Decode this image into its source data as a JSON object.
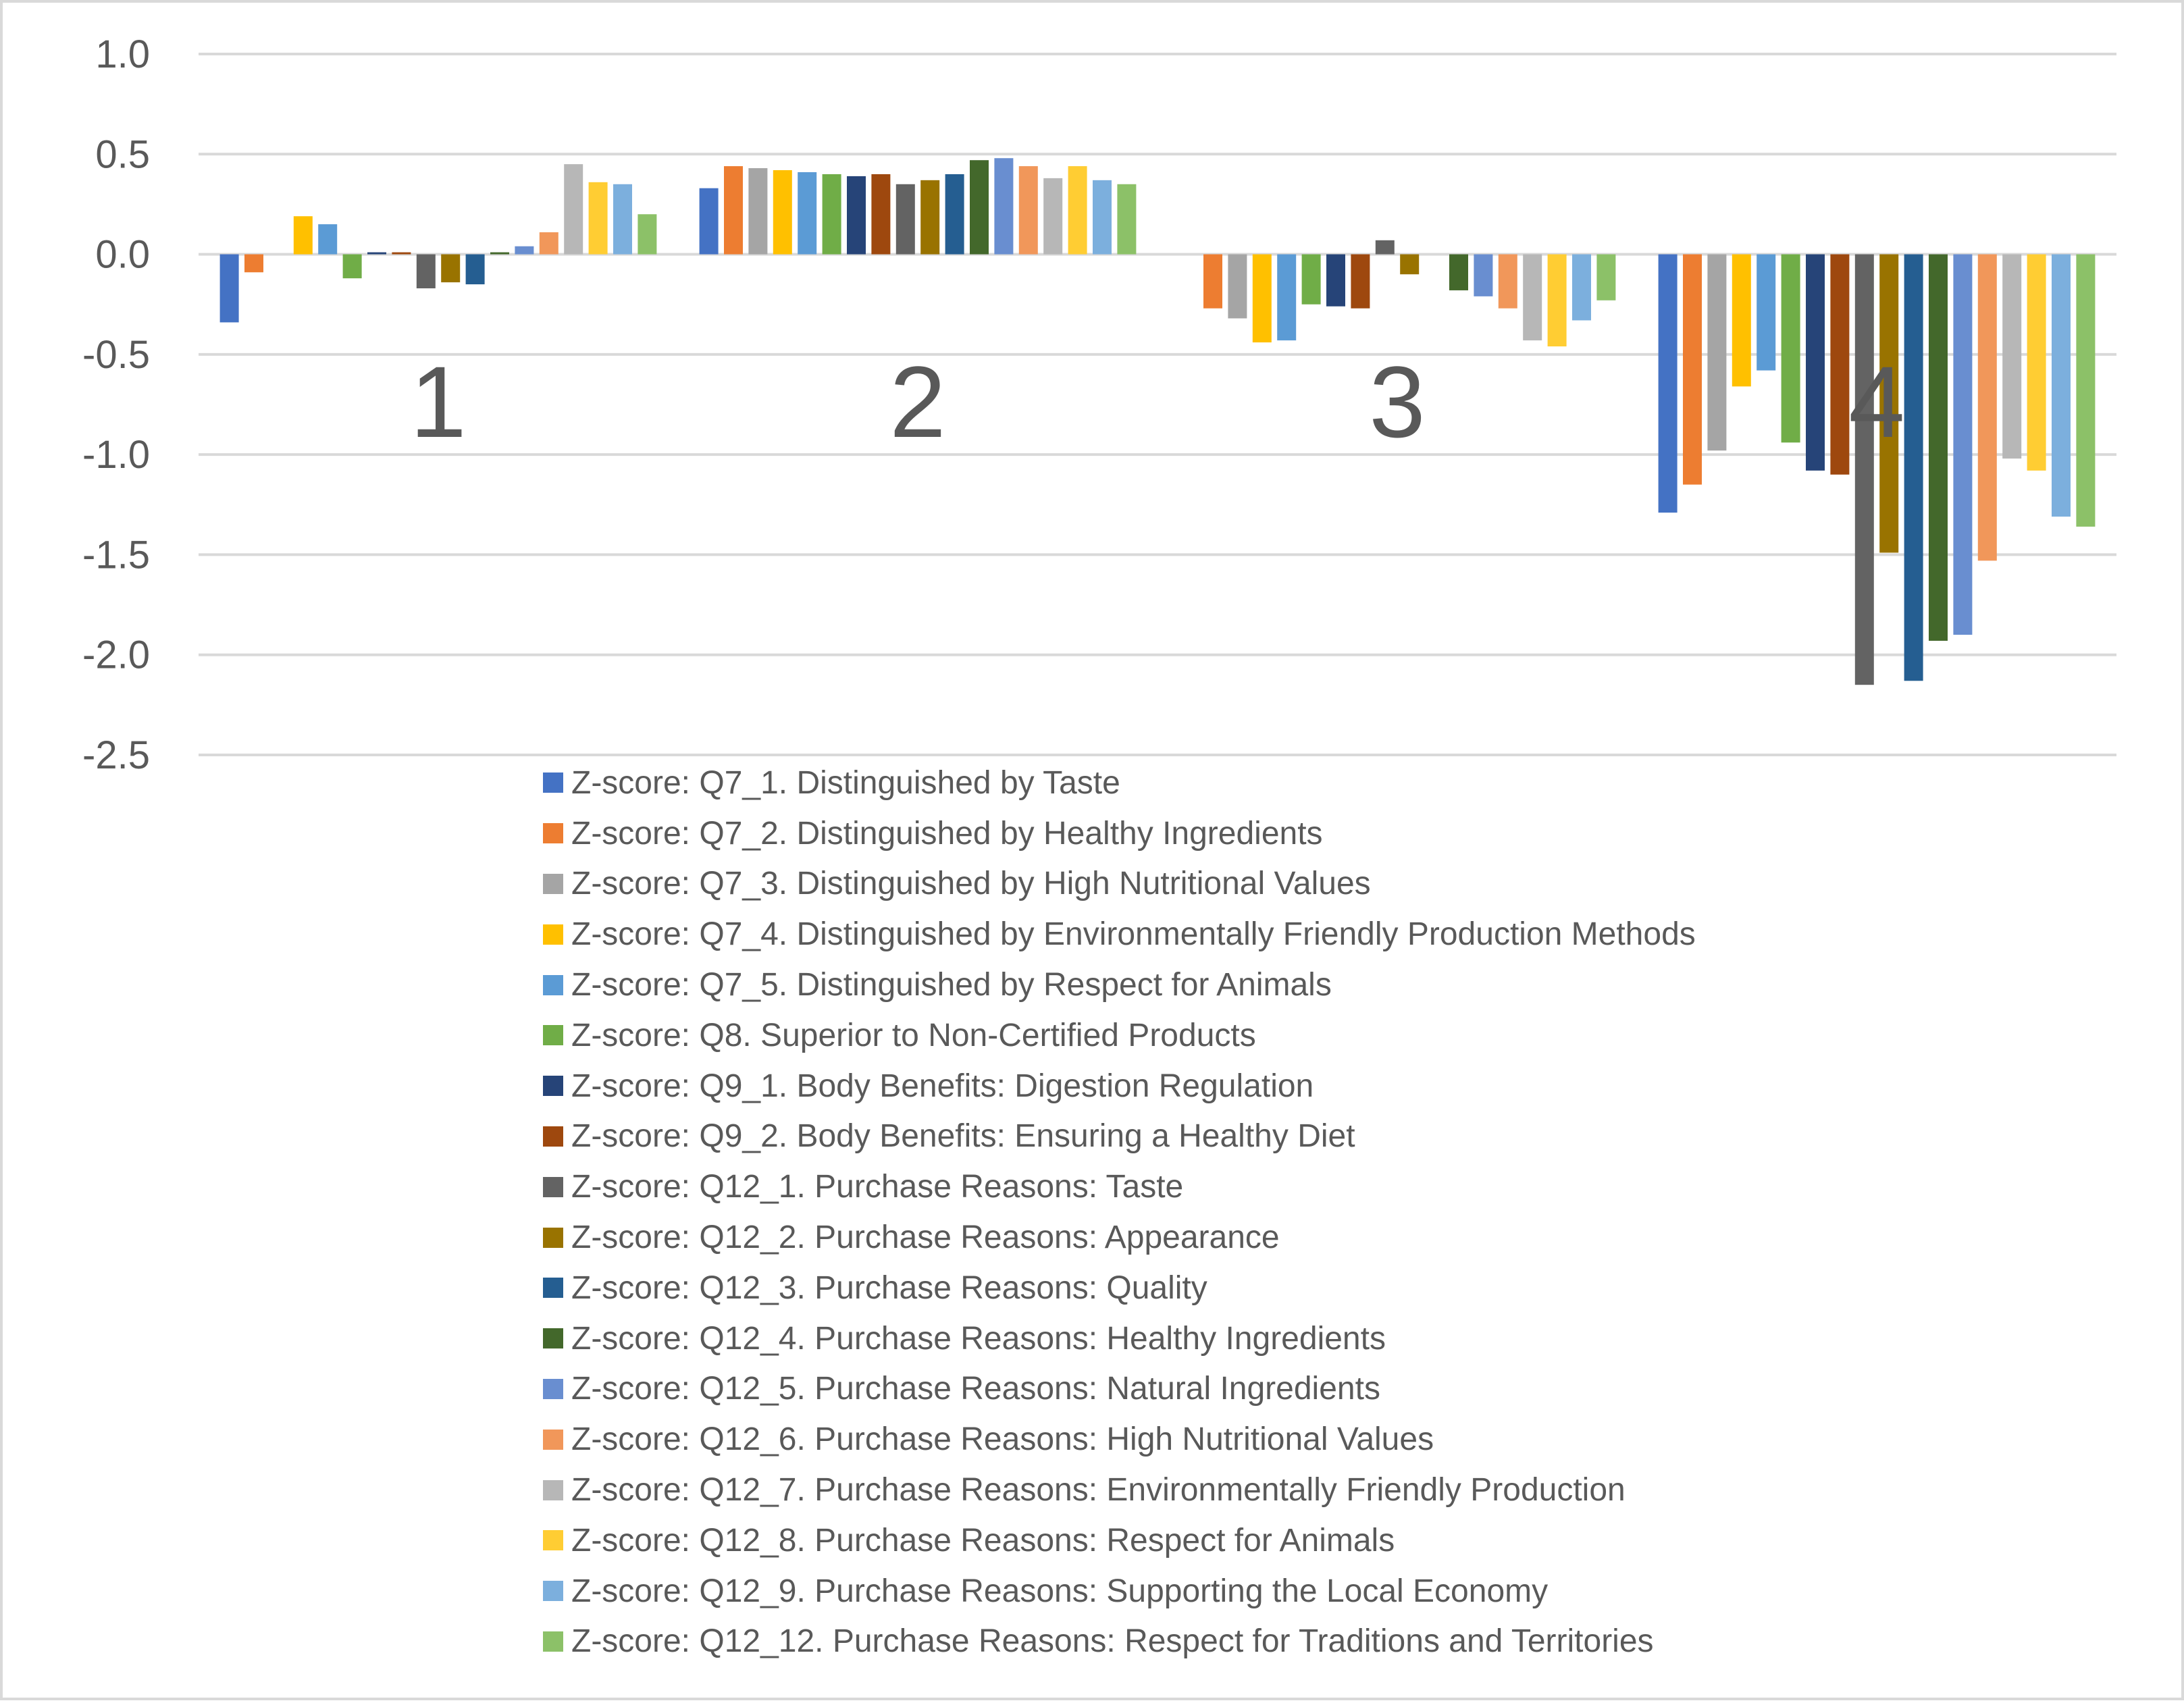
{
  "chart_data": {
    "type": "bar",
    "title": "",
    "xlabel": "",
    "ylabel": "",
    "ylim": [
      -2.5,
      1.0
    ],
    "yticks": [
      1.0,
      0.5,
      0.0,
      -0.5,
      -1.0,
      -1.5,
      -2.0,
      -2.5
    ],
    "ytick_labels": [
      "1.0",
      "0.5",
      "0.0",
      "-0.5",
      "-1.0",
      "-1.5",
      "-2.0",
      "-2.5"
    ],
    "grid": true,
    "legend_position": "bottom",
    "categories": [
      "1",
      "2",
      "3",
      "4"
    ],
    "series": [
      {
        "name": "Z-score: Q7_1. Distinguished by Taste",
        "color": "#4472C4",
        "values": [
          -0.34,
          0.33,
          0.0,
          -1.29
        ]
      },
      {
        "name": "Z-score: Q7_2. Distinguished by Healthy Ingredients",
        "color": "#ED7D31",
        "values": [
          -0.09,
          0.44,
          -0.27,
          -1.15
        ]
      },
      {
        "name": "Z-score: Q7_3. Distinguished by High Nutritional Values",
        "color": "#A5A5A5",
        "values": [
          0.0,
          0.43,
          -0.32,
          -0.98
        ]
      },
      {
        "name": "Z-score: Q7_4. Distinguished by Environmentally Friendly Production Methods",
        "color": "#FFC000",
        "values": [
          0.19,
          0.42,
          -0.44,
          -0.66
        ]
      },
      {
        "name": "Z-score: Q7_5. Distinguished by Respect for Animals",
        "color": "#5B9BD5",
        "values": [
          0.15,
          0.41,
          -0.43,
          -0.58
        ]
      },
      {
        "name": "Z-score: Q8. Superior to Non-Certified Products",
        "color": "#70AD47",
        "values": [
          -0.12,
          0.4,
          -0.25,
          -0.94
        ]
      },
      {
        "name": "Z-score: Q9_1. Body Benefits: Digestion Regulation",
        "color": "#264478",
        "values": [
          0.01,
          0.39,
          -0.26,
          -1.08
        ]
      },
      {
        "name": "Z-score: Q9_2. Body Benefits: Ensuring a Healthy Diet",
        "color": "#9E480E",
        "values": [
          0.01,
          0.4,
          -0.27,
          -1.1
        ]
      },
      {
        "name": "Z-score: Q12_1. Purchase Reasons: Taste",
        "color": "#636363",
        "values": [
          -0.17,
          0.35,
          0.07,
          -2.15
        ]
      },
      {
        "name": "Z-score: Q12_2. Purchase Reasons: Appearance",
        "color": "#997300",
        "values": [
          -0.14,
          0.37,
          -0.1,
          -1.49
        ]
      },
      {
        "name": "Z-score: Q12_3. Purchase Reasons: Quality",
        "color": "#255E91",
        "values": [
          -0.15,
          0.4,
          0.0,
          -2.13
        ]
      },
      {
        "name": "Z-score: Q12_4. Purchase Reasons: Healthy Ingredients",
        "color": "#43682B",
        "values": [
          0.01,
          0.47,
          -0.18,
          -1.93
        ]
      },
      {
        "name": "Z-score: Q12_5. Purchase Reasons: Natural Ingredients",
        "color": "#698ED0",
        "values": [
          0.04,
          0.48,
          -0.21,
          -1.9
        ]
      },
      {
        "name": "Z-score: Q12_6. Purchase Reasons: High Nutritional Values",
        "color": "#F1975A",
        "values": [
          0.11,
          0.44,
          -0.27,
          -1.53
        ]
      },
      {
        "name": "Z-score: Q12_7. Purchase Reasons: Environmentally Friendly Production",
        "color": "#B7B7B7",
        "values": [
          0.45,
          0.38,
          -0.43,
          -1.02
        ]
      },
      {
        "name": "Z-score: Q12_8. Purchase Reasons: Respect for Animals",
        "color": "#FFCD33",
        "values": [
          0.36,
          0.44,
          -0.46,
          -1.08
        ]
      },
      {
        "name": "Z-score: Q12_9. Purchase Reasons: Supporting the Local Economy",
        "color": "#7CAFDD",
        "values": [
          0.35,
          0.37,
          -0.33,
          -1.31
        ]
      },
      {
        "name": "Z-score: Q12_12. Purchase Reasons: Respect for Traditions and Territories",
        "color": "#8CC168",
        "values": [
          0.2,
          0.35,
          -0.23,
          -1.36
        ]
      }
    ]
  }
}
